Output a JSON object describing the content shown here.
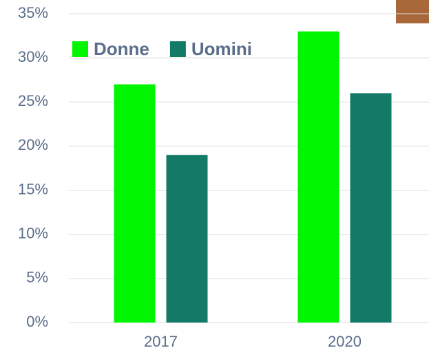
{
  "chart_data": {
    "type": "bar",
    "categories": [
      "2017",
      "2020"
    ],
    "series": [
      {
        "name": "Donne",
        "color": "#00f500",
        "values": [
          27,
          33
        ]
      },
      {
        "name": "Uomini",
        "color": "#137a66",
        "values": [
          19,
          26
        ]
      }
    ],
    "ylim": [
      0,
      35
    ],
    "yticks": [
      {
        "value": 0,
        "label": "0%"
      },
      {
        "value": 5,
        "label": "5%"
      },
      {
        "value": 10,
        "label": "10%"
      },
      {
        "value": 15,
        "label": "15%"
      },
      {
        "value": 20,
        "label": "20%"
      },
      {
        "value": 25,
        "label": "25%"
      },
      {
        "value": 30,
        "label": "30%"
      },
      {
        "value": 35,
        "label": "35%"
      }
    ],
    "grid": true,
    "legend": "top-left"
  }
}
